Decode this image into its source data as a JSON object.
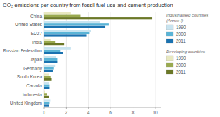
{
  "chart_data": {
    "type": "bar",
    "orientation": "horizontal",
    "title": "CO₂ emissions per country from fossil fuel use and cement production",
    "categories": [
      "China",
      "United States",
      "EU27",
      "India",
      "Russian Federation",
      "Japan",
      "Germany",
      "South Korea",
      "Canada",
      "Indonesia",
      "United Kingdom"
    ],
    "series": [
      {
        "name": "1990",
        "color": "#c8e4f0",
        "values": [
          null,
          5.0,
          4.2,
          null,
          2.4,
          1.1,
          1.0,
          null,
          0.45,
          null,
          0.58
        ]
      },
      {
        "name": "2000",
        "color": "#5ab4d6",
        "values": [
          null,
          5.8,
          4.1,
          null,
          1.5,
          1.2,
          0.85,
          null,
          0.52,
          null,
          0.52
        ]
      },
      {
        "name": "2011",
        "color": "#1a72b0",
        "values": [
          null,
          5.5,
          3.8,
          null,
          1.7,
          1.2,
          0.8,
          null,
          0.52,
          null,
          0.46
        ]
      },
      {
        "name": "1990",
        "color": "#e8e8c0",
        "values": [
          2.4,
          null,
          null,
          0.6,
          null,
          null,
          null,
          0.45,
          null,
          0.1,
          null
        ]
      },
      {
        "name": "2000",
        "color": "#9aaa50",
        "values": [
          3.3,
          null,
          null,
          1.0,
          null,
          null,
          null,
          0.6,
          null,
          0.3,
          null
        ]
      },
      {
        "name": "2011",
        "color": "#6b7828",
        "values": [
          9.7,
          null,
          null,
          1.8,
          null,
          null,
          null,
          0.65,
          null,
          0.48,
          null
        ]
      }
    ],
    "xlim": [
      0,
      10.5
    ],
    "xticks": [
      0,
      2,
      4,
      6,
      8,
      10
    ],
    "grid": true,
    "legend": "right",
    "annotations": [
      [
        "Industrialised countries",
        "(Annex I)"
      ],
      [
        "Developing countries"
      ]
    ]
  }
}
